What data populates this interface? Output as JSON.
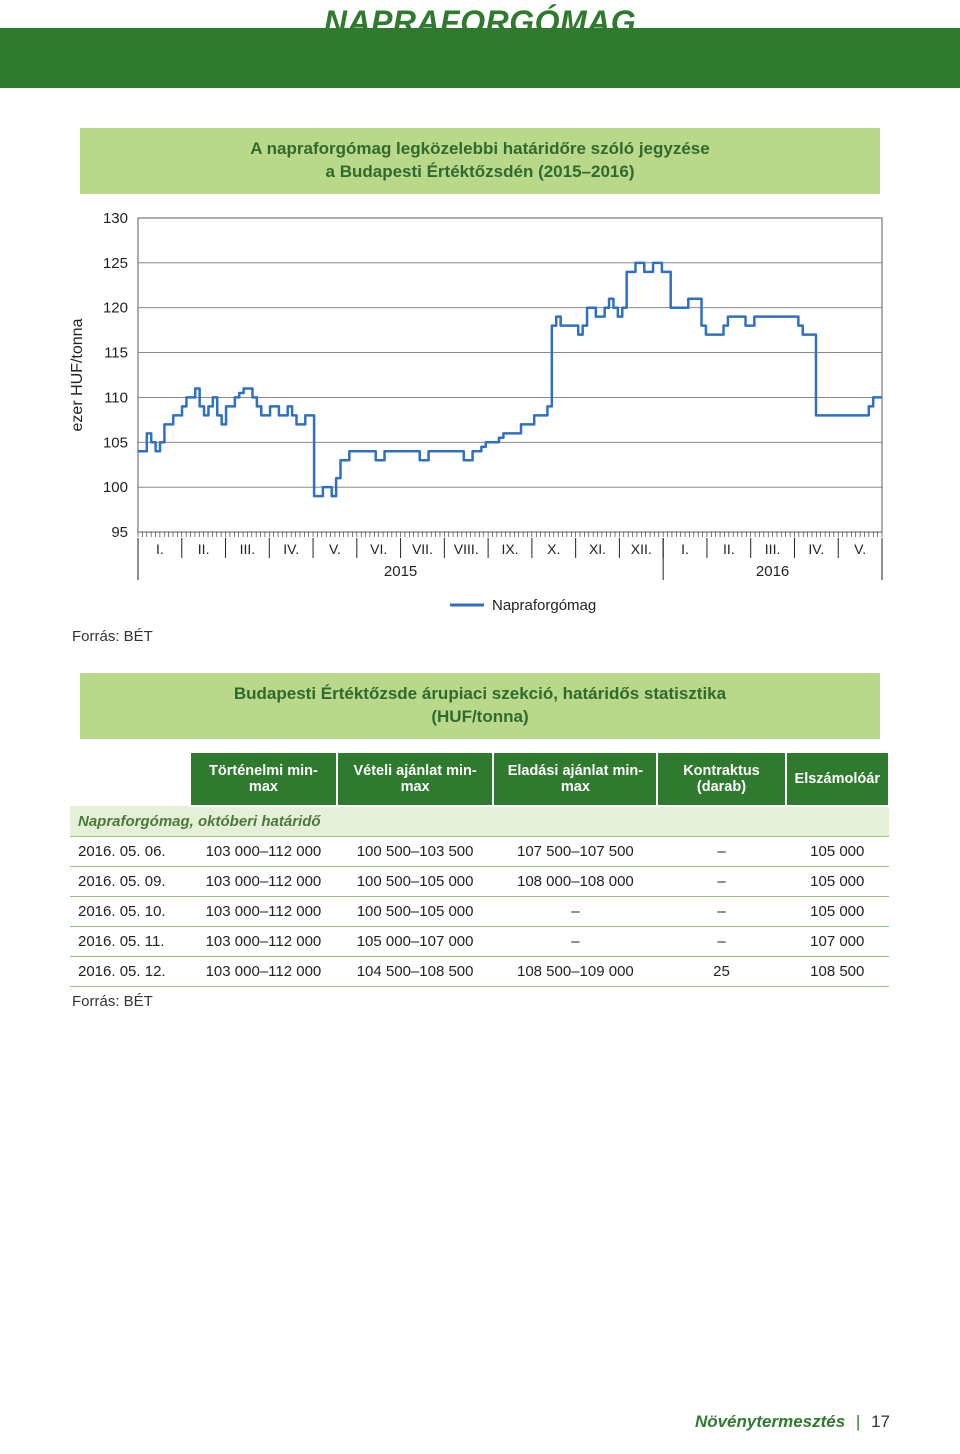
{
  "header": {
    "title": "NAPRAFORGÓMAG"
  },
  "chart": {
    "title_line1": "A napraforgómag legközelebbi határidőre szóló jegyzése",
    "title_line2": "a Budapesti Értéktőzsdén (2015–2016)",
    "type": "line",
    "y_label": "ezer HUF/tonna",
    "y_label_fontsize": 16,
    "ylim": [
      95,
      130
    ],
    "yticks": [
      95,
      100,
      105,
      110,
      115,
      120,
      125,
      130
    ],
    "months_2015": [
      "I.",
      "II.",
      "III.",
      "IV.",
      "V.",
      "VI.",
      "VII.",
      "VIII.",
      "IX.",
      "X.",
      "XI.",
      "XII."
    ],
    "months_2016": [
      "I.",
      "II.",
      "III.",
      "IV.",
      "V."
    ],
    "year_left": "2015",
    "year_right": "2016",
    "legend_label": "Napraforgómag",
    "series_color": "#3070c0",
    "grid_color": "#777777",
    "background_color": "#ffffff",
    "line_width": 2.5,
    "data": [
      104,
      104,
      106,
      105,
      104,
      105,
      107,
      107,
      108,
      108,
      109,
      110,
      110,
      111,
      109,
      108,
      109,
      110,
      108,
      107,
      109,
      109,
      110,
      110.5,
      111,
      111,
      110,
      109,
      108,
      108,
      109,
      109,
      108,
      108,
      109,
      108,
      107,
      107,
      108,
      108,
      99,
      99,
      100,
      100,
      99,
      101,
      103,
      103,
      104,
      104,
      104,
      104,
      104,
      104,
      103,
      103,
      104,
      104,
      104,
      104,
      104,
      104,
      104,
      104,
      103,
      103,
      104,
      104,
      104,
      104,
      104,
      104,
      104,
      104,
      103,
      103,
      104,
      104,
      104.5,
      105,
      105,
      105,
      105.5,
      106,
      106,
      106,
      106,
      107,
      107,
      107,
      108,
      108,
      108,
      109,
      118,
      119,
      118,
      118,
      118,
      118,
      117,
      118,
      120,
      120,
      119,
      119,
      120,
      121,
      120,
      119,
      120,
      124,
      124,
      125,
      125,
      124,
      124,
      125,
      125,
      124,
      124,
      120,
      120,
      120,
      120,
      121,
      121,
      121,
      118,
      117,
      117,
      117,
      117,
      118,
      119,
      119,
      119,
      119,
      118,
      118,
      119,
      119,
      119,
      119,
      119,
      119,
      119,
      119,
      119,
      119,
      118,
      117,
      117,
      117,
      108,
      108,
      108,
      108,
      108,
      108,
      108,
      108,
      108,
      108,
      108,
      108,
      109,
      110,
      110,
      110
    ],
    "source_label": "Forrás: BÉT"
  },
  "stats": {
    "title_line1": "Budapesti Értéktőzsde árupiaci szekció, határidős statisztika",
    "title_line2": "(HUF/tonna)",
    "columns": [
      "Történelmi min-max",
      "Vételi ajánlat min-max",
      "Eladási ajánlat min-max",
      "Kontraktus (darab)",
      "Elszámolóár"
    ],
    "subheader": "Napraforgómag, októberi határidő",
    "rows": [
      {
        "date": "2016. 05. 06.",
        "hist": "103 000–112 000",
        "bid": "100 500–103 500",
        "ask": "107 500–107 500",
        "contracts": "–",
        "settle": "105 000"
      },
      {
        "date": "2016. 05. 09.",
        "hist": "103 000–112 000",
        "bid": "100 500–105 000",
        "ask": "108 000–108 000",
        "contracts": "–",
        "settle": "105 000"
      },
      {
        "date": "2016. 05. 10.",
        "hist": "103 000–112 000",
        "bid": "100 500–105 000",
        "ask": "–",
        "contracts": "–",
        "settle": "105 000"
      },
      {
        "date": "2016. 05. 11.",
        "hist": "103 000–112 000",
        "bid": "105 000–107 000",
        "ask": "–",
        "contracts": "–",
        "settle": "107 000"
      },
      {
        "date": "2016. 05. 12.",
        "hist": "103 000–112 000",
        "bid": "104 500–108 500",
        "ask": "108 500–109 000",
        "contracts": "25",
        "settle": "108 500"
      }
    ],
    "source_label": "Forrás: BÉT"
  },
  "footer": {
    "section": "Növénytermesztés",
    "page": "17"
  }
}
